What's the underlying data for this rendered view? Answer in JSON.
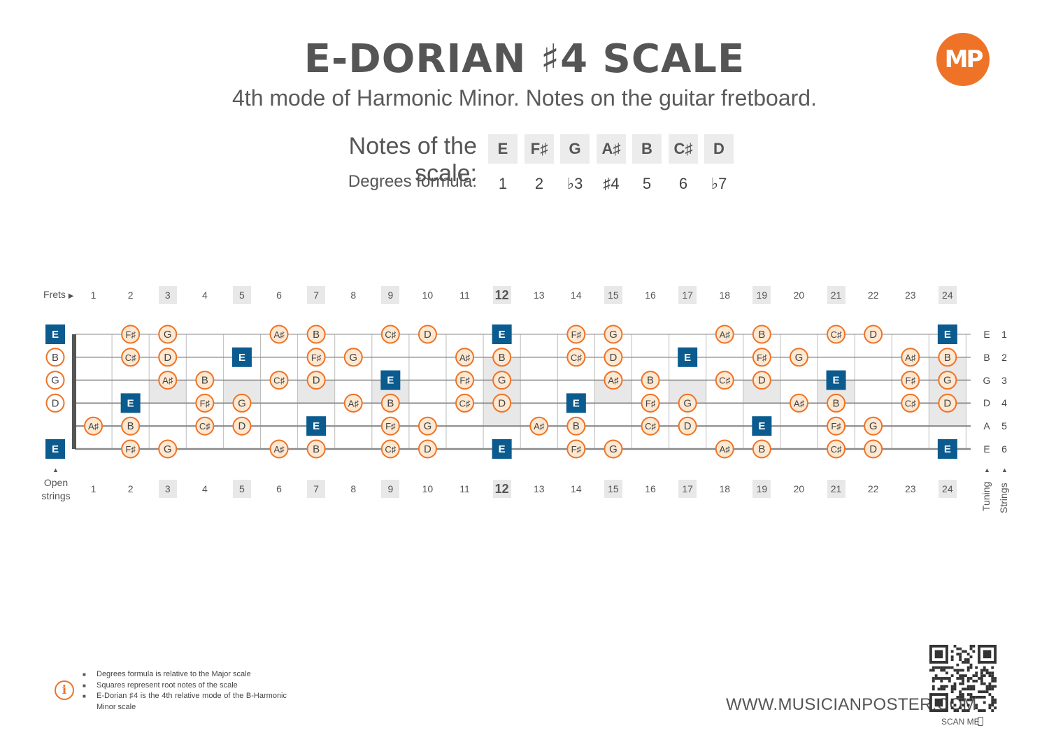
{
  "title": "E-DORIAN ♯4 SCALE",
  "subtitle": "4th mode of Harmonic Minor. Notes on the guitar fretboard.",
  "logo_text": "MP",
  "scale": {
    "notes_label": "Notes of the scale:",
    "degrees_label": "Degrees formula:",
    "notes": [
      "E",
      "F♯",
      "G",
      "A♯",
      "B",
      "C♯",
      "D"
    ],
    "degrees": [
      "1",
      "2",
      "♭3",
      "♯4",
      "5",
      "6",
      "♭7"
    ]
  },
  "fretboard": {
    "frets_label": "Frets",
    "open_strings_label": "Open strings",
    "tuning_label": "Tuning",
    "strings_label": "Strings",
    "fret_numbers": [
      "1",
      "2",
      "3",
      "4",
      "5",
      "6",
      "7",
      "8",
      "9",
      "10",
      "11",
      "12",
      "13",
      "14",
      "15",
      "16",
      "17",
      "18",
      "19",
      "20",
      "21",
      "22",
      "23",
      "24"
    ],
    "marked_frets": [
      3,
      5,
      7,
      9,
      12,
      15,
      17,
      19,
      21,
      24
    ],
    "tuning": [
      "E",
      "B",
      "G",
      "D",
      "A",
      "E"
    ],
    "string_numbers": [
      "1",
      "2",
      "3",
      "4",
      "5",
      "6"
    ],
    "root": "E",
    "string_notes": [
      [
        "E",
        "",
        "F♯",
        "G",
        "",
        "",
        "A♯",
        "B",
        "",
        "C♯",
        "D",
        "",
        "E",
        "",
        "F♯",
        "G",
        "",
        "",
        "A♯",
        "B",
        "",
        "C♯",
        "D",
        "",
        "E"
      ],
      [
        "B",
        "",
        "C♯",
        "D",
        "",
        "E",
        "",
        "F♯",
        "G",
        "",
        "",
        "A♯",
        "B",
        "",
        "C♯",
        "D",
        "",
        "E",
        "",
        "F♯",
        "G",
        "",
        "",
        "A♯",
        "B"
      ],
      [
        "G",
        "",
        "",
        "A♯",
        "B",
        "",
        "C♯",
        "D",
        "",
        "E",
        "",
        "F♯",
        "G",
        "",
        "",
        "A♯",
        "B",
        "",
        "C♯",
        "D",
        "",
        "E",
        "",
        "F♯",
        "G"
      ],
      [
        "D",
        "",
        "E",
        "",
        "F♯",
        "G",
        "",
        "",
        "A♯",
        "B",
        "",
        "C♯",
        "D",
        "",
        "E",
        "",
        "F♯",
        "G",
        "",
        "",
        "A♯",
        "B",
        "",
        "C♯",
        "D"
      ],
      [
        "",
        "A♯",
        "B",
        "",
        "C♯",
        "D",
        "",
        "E",
        "",
        "F♯",
        "G",
        "",
        "",
        "A♯",
        "B",
        "",
        "C♯",
        "D",
        "",
        "E",
        "",
        "F♯",
        "G",
        "",
        ""
      ],
      [
        "E",
        "",
        "F♯",
        "G",
        "",
        "",
        "A♯",
        "B",
        "",
        "C♯",
        "D",
        "",
        "E",
        "",
        "F♯",
        "G",
        "",
        "",
        "A♯",
        "B",
        "",
        "C♯",
        "D",
        "",
        "E"
      ]
    ]
  },
  "footnotes": [
    "Degrees formula is relative to the Major scale",
    "Squares represent root notes of the scale",
    "E-Dorian ♯4 is the 4th relative mode of the B-Harmonic Minor scale"
  ],
  "website": "WWW.MUSICIANPOSTER.COM",
  "scan_me": "SCAN ME",
  "colors": {
    "accent": "#ee7326",
    "root": "#0b5b8f",
    "note_fill": "#fde8d2",
    "text": "#555555",
    "highlight": "#e8e8e8"
  }
}
